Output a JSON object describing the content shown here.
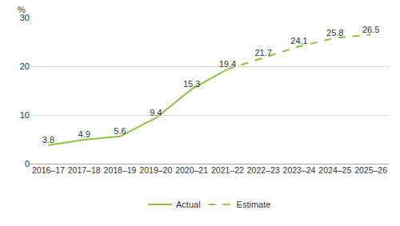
{
  "chart_data": {
    "type": "line",
    "y_label": "%",
    "categories": [
      "2016–17",
      "2017–18",
      "2018–19",
      "2019–20",
      "2020–21",
      "2021–22",
      "2022–23",
      "2023–24",
      "2024–25",
      "2025–26"
    ],
    "series": [
      {
        "name": "Actual",
        "color": "#8cc63f",
        "line_style": "solid",
        "values": [
          3.8,
          4.9,
          5.6,
          9.4,
          15.3,
          19.4,
          null,
          null,
          null,
          null
        ]
      },
      {
        "name": "Estimate",
        "color": "#8cc63f",
        "line_style": "dash",
        "values": [
          null,
          null,
          null,
          null,
          null,
          19.4,
          21.7,
          24.1,
          25.8,
          26.5
        ]
      }
    ],
    "ylim": [
      0,
      30
    ],
    "yticks": [
      0,
      10,
      20,
      30
    ],
    "grid": true,
    "data_labels": true,
    "legend": "bottom"
  }
}
